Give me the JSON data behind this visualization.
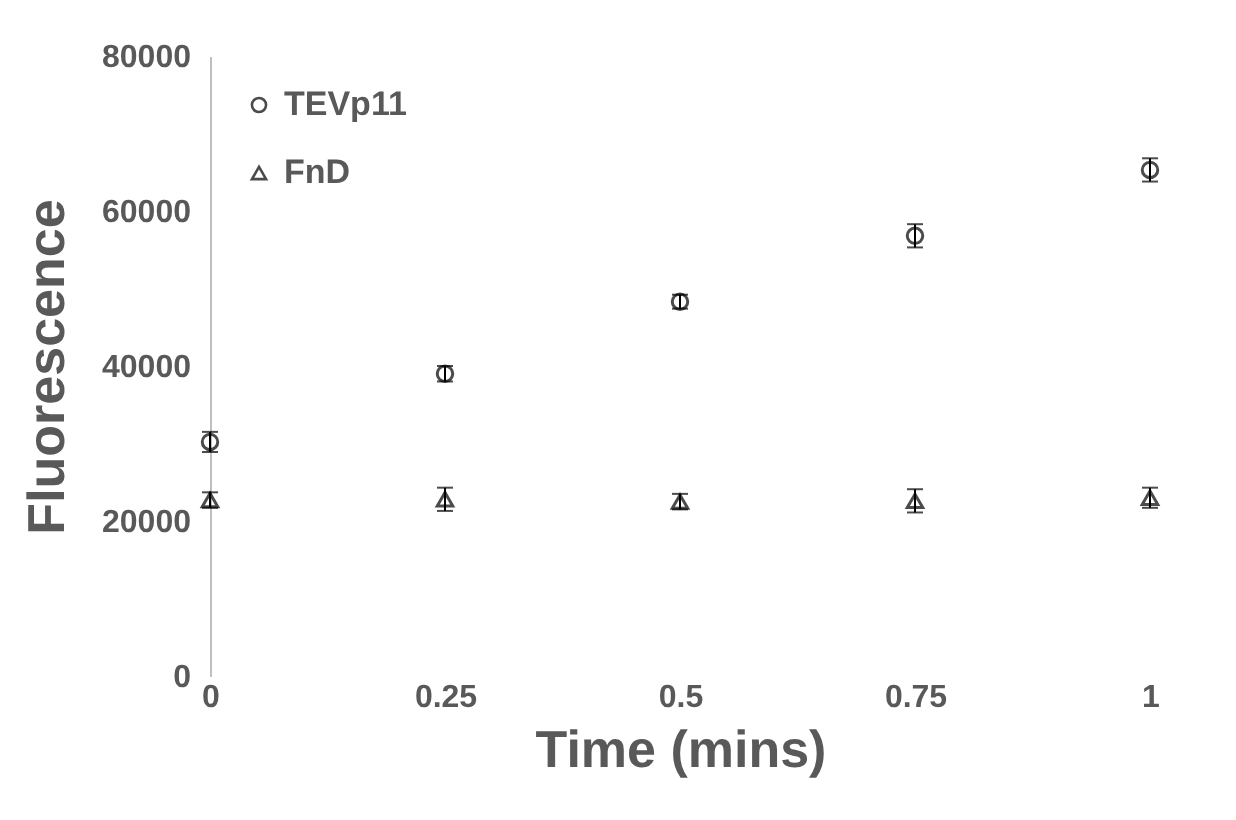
{
  "chart_data": {
    "type": "scatter",
    "xlabel": "Time (mins)",
    "ylabel": "Fluorescence",
    "x": [
      0,
      0.25,
      0.5,
      0.75,
      1
    ],
    "series": [
      {
        "name": "TEVp11",
        "color": "#000000",
        "marker": "circle",
        "values": [
          30200,
          39000,
          48300,
          56800,
          65300
        ],
        "errors": [
          1300,
          1000,
          900,
          1500,
          1500
        ]
      },
      {
        "name": "FnD",
        "color": "#000000",
        "marker": "triangle",
        "values": [
          22700,
          22800,
          22500,
          22600,
          23000
        ],
        "errors": [
          1000,
          1500,
          1000,
          1500,
          1300
        ]
      }
    ],
    "xlim": [
      0,
      1
    ],
    "xticks": [
      0,
      0.25,
      0.5,
      0.75,
      1
    ],
    "ylim": [
      0,
      80000
    ],
    "yticks": [
      0,
      20000,
      40000,
      60000,
      80000
    ],
    "grid": false,
    "legend": "top left"
  }
}
